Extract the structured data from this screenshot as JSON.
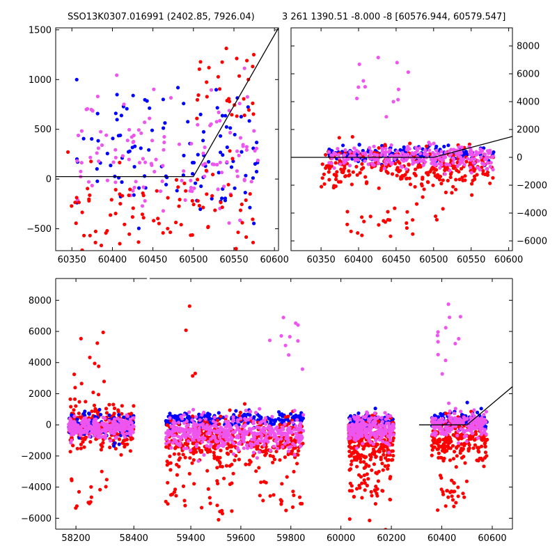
{
  "chart_data": [
    {
      "id": "top-left",
      "type": "scatter",
      "title": "SSO13K0307.016991 (2402.85, 7926.04)",
      "xlabel": "",
      "ylabel": "",
      "xlim": [
        60330,
        60605
      ],
      "ylim": [
        -720,
        1520
      ],
      "xticks": [
        60350,
        60400,
        60450,
        60500,
        60550,
        60600
      ],
      "yticks": [
        -500,
        0,
        500,
        1000,
        1500
      ],
      "ytick_side": "left",
      "grid": false,
      "model_line": [
        [
          60330,
          25
        ],
        [
          60500,
          25
        ],
        [
          60605,
          1520
        ]
      ],
      "clusters": [
        {
          "color": "#0000ff",
          "x_range": [
            60355,
            60580
          ],
          "y_center": 300,
          "y_spread": 550,
          "n": 110
        },
        {
          "color": "#ee55ee",
          "x_range": [
            60355,
            60580
          ],
          "y_center": 250,
          "y_spread": 500,
          "n": 120
        },
        {
          "color": "#ff0000",
          "x_range": [
            60345,
            60580
          ],
          "y_center": -350,
          "y_spread": 380,
          "n": 90
        },
        {
          "color": "#ff0000",
          "x_range": [
            60500,
            60580
          ],
          "y_center": 900,
          "y_spread": 400,
          "n": 30
        }
      ]
    },
    {
      "id": "top-right",
      "type": "scatter",
      "title": "3 261 1390.51 -8.000 -8 [60576.944, 60579.547]",
      "xlabel": "",
      "ylabel": "",
      "xlim": [
        60310,
        60605
      ],
      "ylim": [
        -6700,
        9300
      ],
      "xticks": [
        60350,
        60400,
        60450,
        60500,
        60550,
        60600
      ],
      "yticks": [
        -6000,
        -4000,
        -2000,
        0,
        2000,
        4000,
        6000,
        8000
      ],
      "ytick_side": "right",
      "grid": false,
      "model_line": [
        [
          60310,
          0
        ],
        [
          60500,
          0
        ],
        [
          60605,
          1500
        ]
      ],
      "clusters": [
        {
          "color": "#0000ff",
          "x_range": [
            60360,
            60580
          ],
          "y_center": 200,
          "y_spread": 500,
          "n": 160
        },
        {
          "color": "#ff0000",
          "x_range": [
            60350,
            60580
          ],
          "y_center": -800,
          "y_spread": 1200,
          "n": 280
        },
        {
          "color": "#ee55ee",
          "x_range": [
            60360,
            60580
          ],
          "y_center": 0,
          "y_spread": 700,
          "n": 260
        },
        {
          "color": "#ee55ee",
          "x_range": [
            60380,
            60500
          ],
          "y_center": 4500,
          "y_spread": 2000,
          "n": 12
        },
        {
          "color": "#ff0000",
          "x_range": [
            60380,
            60520
          ],
          "y_center": -4500,
          "y_spread": 1200,
          "n": 25
        }
      ]
    },
    {
      "id": "bottom",
      "type": "scatter",
      "title": "",
      "xlabel": "",
      "ylabel": "",
      "broken_axis": true,
      "segments": [
        {
          "xlim": [
            58130,
            58450
          ],
          "xticks": [
            58200,
            58400
          ],
          "clusters": [
            {
              "color": "#ff0000",
              "x_range": [
                58175,
                58400
              ],
              "y_center": -200,
              "y_spread": 1100,
              "n": 220
            },
            {
              "color": "#0000ff",
              "x_range": [
                58175,
                58400
              ],
              "y_center": -100,
              "y_spread": 800,
              "n": 80
            },
            {
              "color": "#ee55ee",
              "x_range": [
                58175,
                58400
              ],
              "y_center": -150,
              "y_spread": 500,
              "n": 260
            },
            {
              "color": "#ff0000",
              "x_range": [
                58180,
                58320
              ],
              "y_center": 3500,
              "y_spread": 2500,
              "n": 18
            },
            {
              "color": "#ff0000",
              "x_range": [
                58180,
                58320
              ],
              "y_center": -4500,
              "y_spread": 1500,
              "n": 14
            }
          ]
        },
        {
          "xlim": [
            59230,
            59990
          ],
          "xticks": [
            59400,
            59600,
            59800
          ],
          "clusters": [
            {
              "color": "#0000ff",
              "x_range": [
                59300,
                59850
              ],
              "y_center": 300,
              "y_spread": 400,
              "n": 220
            },
            {
              "color": "#ff0000",
              "x_range": [
                59300,
                59850
              ],
              "y_center": -1100,
              "y_spread": 1300,
              "n": 420
            },
            {
              "color": "#ee55ee",
              "x_range": [
                59300,
                59850
              ],
              "y_center": -500,
              "y_spread": 900,
              "n": 420
            },
            {
              "color": "#ff0000",
              "x_range": [
                59300,
                59850
              ],
              "y_center": -4500,
              "y_spread": 1500,
              "n": 50
            },
            {
              "color": "#ee55ee",
              "x_range": [
                59700,
                59850
              ],
              "y_center": 5500,
              "y_spread": 1500,
              "n": 10
            },
            {
              "color": "#ff0000",
              "x_range": [
                59380,
                59420
              ],
              "y_center": 6000,
              "y_spread": 3000,
              "n": 4
            }
          ]
        },
        {
          "xlim": [
            59990,
            60680
          ],
          "xticks": [
            60000,
            60200,
            60400,
            60600
          ],
          "model_line": [
            [
              60310,
              0
            ],
            [
              60500,
              0
            ],
            [
              60680,
              2450
            ]
          ],
          "clusters": [
            {
              "color": "#0000ff",
              "x_range": [
                60030,
                60210
              ],
              "y_center": 200,
              "y_spread": 400,
              "n": 110
            },
            {
              "color": "#ff0000",
              "x_range": [
                60030,
                60210
              ],
              "y_center": -1200,
              "y_spread": 1300,
              "n": 230
            },
            {
              "color": "#ee55ee",
              "x_range": [
                60030,
                60210
              ],
              "y_center": -300,
              "y_spread": 800,
              "n": 230
            },
            {
              "color": "#ff0000",
              "x_range": [
                60030,
                60210
              ],
              "y_center": -4000,
              "y_spread": 1500,
              "n": 45
            },
            {
              "color": "#0000ff",
              "x_range": [
                60360,
                60580
              ],
              "y_center": 300,
              "y_spread": 500,
              "n": 90
            },
            {
              "color": "#ff0000",
              "x_range": [
                60360,
                60580
              ],
              "y_center": -1000,
              "y_spread": 1200,
              "n": 200
            },
            {
              "color": "#ee55ee",
              "x_range": [
                60360,
                60580
              ],
              "y_center": 0,
              "y_spread": 700,
              "n": 180
            },
            {
              "color": "#ee55ee",
              "x_range": [
                60380,
                60480
              ],
              "y_center": 5500,
              "y_spread": 2500,
              "n": 12
            },
            {
              "color": "#ff0000",
              "x_range": [
                60380,
                60500
              ],
              "y_center": -4500,
              "y_spread": 1200,
              "n": 25
            }
          ]
        }
      ],
      "ylim": [
        -6700,
        9400
      ],
      "yticks": [
        -6000,
        -4000,
        -2000,
        0,
        2000,
        4000,
        6000,
        8000
      ],
      "ytick_side": "left",
      "grid": false
    }
  ],
  "colors": {
    "blue": "#0000ff",
    "red": "#ff0000",
    "magenta": "#ee55ee",
    "axes": "#000000",
    "background": "#ffffff"
  }
}
